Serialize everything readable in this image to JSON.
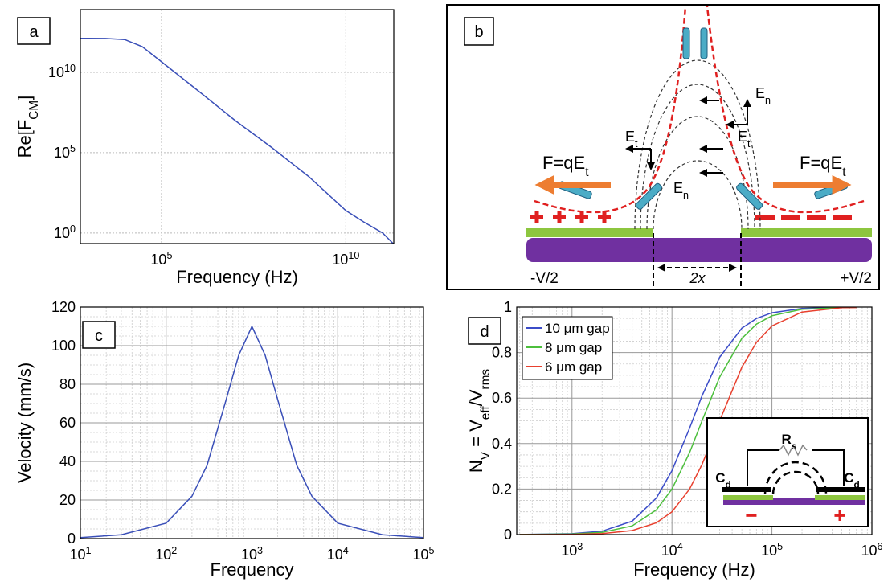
{
  "chart_data": [
    {
      "type": "line",
      "panel_label": "a",
      "xlabel": "Frequency (Hz)",
      "ylabel": "Re[F_CM]",
      "xscale": "log",
      "yscale": "log",
      "xlim": [
        630,
        200000000000
      ],
      "ylim": [
        0.22,
        80000000000000
      ],
      "xticks": [
        {
          "value": 100000,
          "label": "10^5"
        },
        {
          "value": 10000000000,
          "label": "10^10"
        }
      ],
      "yticks": [
        {
          "value": 1,
          "label": "10^0"
        },
        {
          "value": 100000,
          "label": "10^5"
        },
        {
          "value": 10000000000,
          "label": "10^10"
        }
      ],
      "grid": "dotted",
      "x": [
        630,
        1000,
        3000,
        10000,
        30000,
        100000,
        1000000,
        10000000,
        100000000,
        1000000000,
        10000000000,
        30000000000,
        100000000000,
        200000000000
      ],
      "series": [
        {
          "color": "#3a4fb8",
          "values": [
            1300000000000,
            1300000000000,
            1280000000000,
            1100000000000,
            400000000000,
            45000000000,
            700000000,
            10000000,
            200000,
            3200,
            25,
            5,
            1,
            0.2
          ]
        }
      ]
    },
    {
      "type": "line",
      "panel_label": "c",
      "xlabel": "Frequency",
      "ylabel": "Velocity (mm/s)",
      "xscale": "log",
      "yscale": "linear",
      "xlim": [
        10,
        100000
      ],
      "ylim": [
        0,
        120
      ],
      "xticks": [
        {
          "value": 10,
          "label": "10^1"
        },
        {
          "value": 100,
          "label": "10^2"
        },
        {
          "value": 1000,
          "label": "10^3"
        },
        {
          "value": 10000,
          "label": "10^4"
        },
        {
          "value": 100000,
          "label": "10^5"
        }
      ],
      "yticks": [
        0,
        20,
        40,
        60,
        80,
        100,
        120
      ],
      "grid": "solid",
      "minor_grid": true,
      "x": [
        10,
        30,
        100,
        200,
        300,
        500,
        700,
        1000,
        1429,
        2000,
        3333,
        5000,
        10000,
        33333,
        100000
      ],
      "series": [
        {
          "color": "#3a4fb8",
          "values": [
            0.5,
            2,
            8,
            22,
            38,
            72,
            95,
            110,
            95,
            72,
            38,
            22,
            8,
            2,
            0.5
          ]
        }
      ]
    },
    {
      "type": "line",
      "panel_label": "d",
      "xlabel": "Frequency (Hz)",
      "ylabel": "N_V = V_eff/V_rms",
      "xscale": "log",
      "yscale": "linear",
      "xlim": [
        280,
        1000000
      ],
      "ylim": [
        0,
        1
      ],
      "xticks": [
        {
          "value": 1000,
          "label": "10^3"
        },
        {
          "value": 10000,
          "label": "10^4"
        },
        {
          "value": 100000,
          "label": "10^5"
        },
        {
          "value": 1000000,
          "label": "10^6"
        }
      ],
      "yticks": [
        0,
        0.2,
        0.4,
        0.6,
        0.8,
        1
      ],
      "grid": "solid",
      "minor_grid": true,
      "legend": "upper-left",
      "x": [
        300,
        1000,
        2000,
        4000,
        7000,
        10000,
        15000,
        20000,
        30000,
        50000,
        70000,
        100000,
        200000,
        500000,
        700000
      ],
      "series": [
        {
          "name": "10 μm gap",
          "color": "#3b4cc8",
          "values": [
            0.0004,
            0.004,
            0.015,
            0.059,
            0.161,
            0.281,
            0.468,
            0.61,
            0.779,
            0.907,
            0.95,
            0.975,
            0.994,
            0.999,
            1
          ]
        },
        {
          "name": "8 μm gap",
          "color": "#4cbf3c",
          "values": [
            0.0002,
            0.0025,
            0.0099,
            0.038,
            0.109,
            0.2,
            0.36,
            0.5,
            0.692,
            0.862,
            0.925,
            0.962,
            0.99,
            0.998,
            0.999
          ]
        },
        {
          "name": "6 μm gap",
          "color": "#e8402e",
          "values": [
            0.0001,
            0.0011,
            0.0044,
            0.0175,
            0.052,
            0.1,
            0.2,
            0.308,
            0.5,
            0.735,
            0.845,
            0.917,
            0.978,
            0.997,
            0.998
          ]
        }
      ],
      "annotations": [
        "R_s",
        "C_d",
        "C_d",
        "−",
        "+"
      ]
    }
  ],
  "diagram": {
    "panel_label": "b",
    "force_left": "F=qE_t",
    "force_right": "F=qE_t",
    "field_labels": [
      "E_t",
      "E_n",
      "E_t",
      "E_n"
    ],
    "voltage_left": "-V/2",
    "voltage_right": "+V/2",
    "gap": "2x"
  }
}
